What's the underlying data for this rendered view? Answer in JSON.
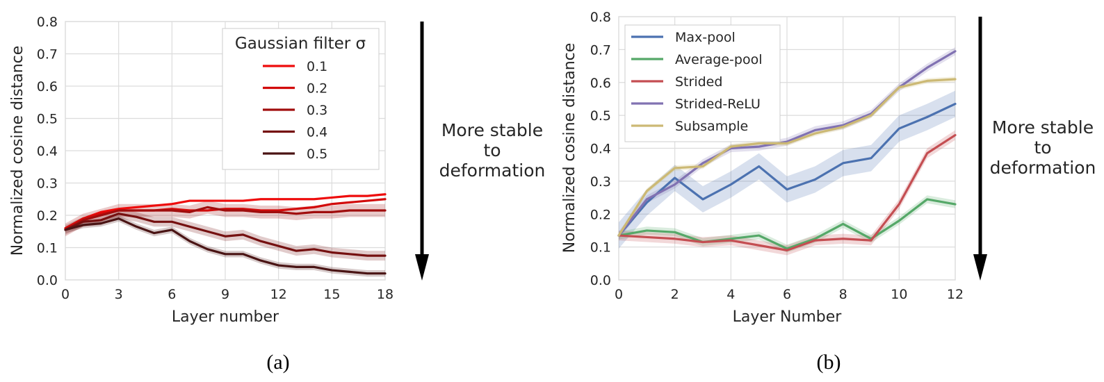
{
  "chart_data": [
    {
      "type": "line",
      "panel": "a",
      "caption": "(a)",
      "xlabel": "Layer number",
      "ylabel": "Normalized cosine distance",
      "xlim": [
        0,
        18
      ],
      "ylim": [
        0,
        0.8
      ],
      "xticks": [
        0,
        3,
        6,
        9,
        12,
        15,
        18
      ],
      "yticks": [
        0.0,
        0.1,
        0.2,
        0.3,
        0.4,
        0.5,
        0.6,
        0.7,
        0.8
      ],
      "grid": true,
      "legend": {
        "title": "Gaussian filter σ",
        "placement": "top-right"
      },
      "annotation": [
        "More stable",
        "to",
        "deformation"
      ],
      "x": [
        0,
        1,
        2,
        3,
        4,
        5,
        6,
        7,
        8,
        9,
        10,
        11,
        12,
        13,
        14,
        15,
        16,
        17,
        18
      ],
      "series": [
        {
          "name": "0.1",
          "color": "#ee0c0c",
          "band": 0.0,
          "values": [
            0.16,
            0.19,
            0.21,
            0.22,
            0.225,
            0.23,
            0.235,
            0.245,
            0.245,
            0.245,
            0.245,
            0.25,
            0.25,
            0.25,
            0.25,
            0.255,
            0.26,
            0.26,
            0.265
          ]
        },
        {
          "name": "0.2",
          "color": "#d20b0b",
          "band": 0.0,
          "values": [
            0.16,
            0.19,
            0.205,
            0.215,
            0.215,
            0.215,
            0.22,
            0.215,
            0.215,
            0.22,
            0.22,
            0.215,
            0.215,
            0.22,
            0.225,
            0.235,
            0.24,
            0.245,
            0.25
          ]
        },
        {
          "name": "0.3",
          "color": "#a00d0d",
          "band": 0.02,
          "values": [
            0.155,
            0.185,
            0.2,
            0.215,
            0.215,
            0.215,
            0.215,
            0.21,
            0.225,
            0.215,
            0.215,
            0.21,
            0.21,
            0.205,
            0.21,
            0.21,
            0.215,
            0.215,
            0.215
          ]
        },
        {
          "name": "0.4",
          "color": "#751010",
          "band": 0.015,
          "values": [
            0.155,
            0.18,
            0.185,
            0.205,
            0.195,
            0.18,
            0.18,
            0.165,
            0.15,
            0.135,
            0.14,
            0.12,
            0.105,
            0.09,
            0.095,
            0.085,
            0.08,
            0.075,
            0.075
          ]
        },
        {
          "name": "0.5",
          "color": "#4a1414",
          "band": 0.01,
          "values": [
            0.155,
            0.17,
            0.175,
            0.19,
            0.165,
            0.145,
            0.155,
            0.12,
            0.095,
            0.08,
            0.08,
            0.06,
            0.045,
            0.04,
            0.04,
            0.03,
            0.025,
            0.02,
            0.02
          ]
        }
      ]
    },
    {
      "type": "line",
      "panel": "b",
      "caption": "(b)",
      "xlabel": "Layer Number",
      "ylabel": "Normalized cosine distance",
      "xlim": [
        0,
        12
      ],
      "ylim": [
        0,
        0.8
      ],
      "xticks": [
        0,
        2,
        4,
        6,
        8,
        10,
        12
      ],
      "yticks": [
        0.0,
        0.1,
        0.2,
        0.3,
        0.4,
        0.5,
        0.6,
        0.7,
        0.8
      ],
      "grid": true,
      "legend": {
        "placement": "top-left"
      },
      "annotation": [
        "More stable",
        "to",
        "deformation"
      ],
      "x": [
        0,
        1,
        2,
        3,
        4,
        5,
        6,
        7,
        8,
        9,
        10,
        11,
        12
      ],
      "series": [
        {
          "name": "Max-pool",
          "color": "#4c72b0",
          "band": 0.04,
          "values": [
            0.135,
            0.235,
            0.31,
            0.245,
            0.29,
            0.345,
            0.275,
            0.305,
            0.355,
            0.37,
            0.46,
            0.495,
            0.535
          ]
        },
        {
          "name": "Average-pool",
          "color": "#55a868",
          "band": 0.012,
          "values": [
            0.135,
            0.15,
            0.145,
            0.115,
            0.125,
            0.135,
            0.095,
            0.125,
            0.17,
            0.125,
            0.18,
            0.245,
            0.23
          ]
        },
        {
          "name": "Strided",
          "color": "#c44e52",
          "band": 0.015,
          "values": [
            0.135,
            0.13,
            0.125,
            0.115,
            0.12,
            0.105,
            0.09,
            0.12,
            0.125,
            0.12,
            0.23,
            0.385,
            0.44
          ]
        },
        {
          "name": "Strided-ReLU",
          "color": "#8172b2",
          "band": 0.012,
          "values": [
            0.135,
            0.245,
            0.29,
            0.355,
            0.4,
            0.405,
            0.42,
            0.455,
            0.47,
            0.505,
            0.585,
            0.645,
            0.695
          ]
        },
        {
          "name": "Subsample",
          "color": "#ccb974",
          "band": 0.008,
          "values": [
            0.135,
            0.27,
            0.34,
            0.345,
            0.405,
            0.415,
            0.415,
            0.445,
            0.465,
            0.5,
            0.585,
            0.605,
            0.61
          ]
        }
      ]
    }
  ]
}
